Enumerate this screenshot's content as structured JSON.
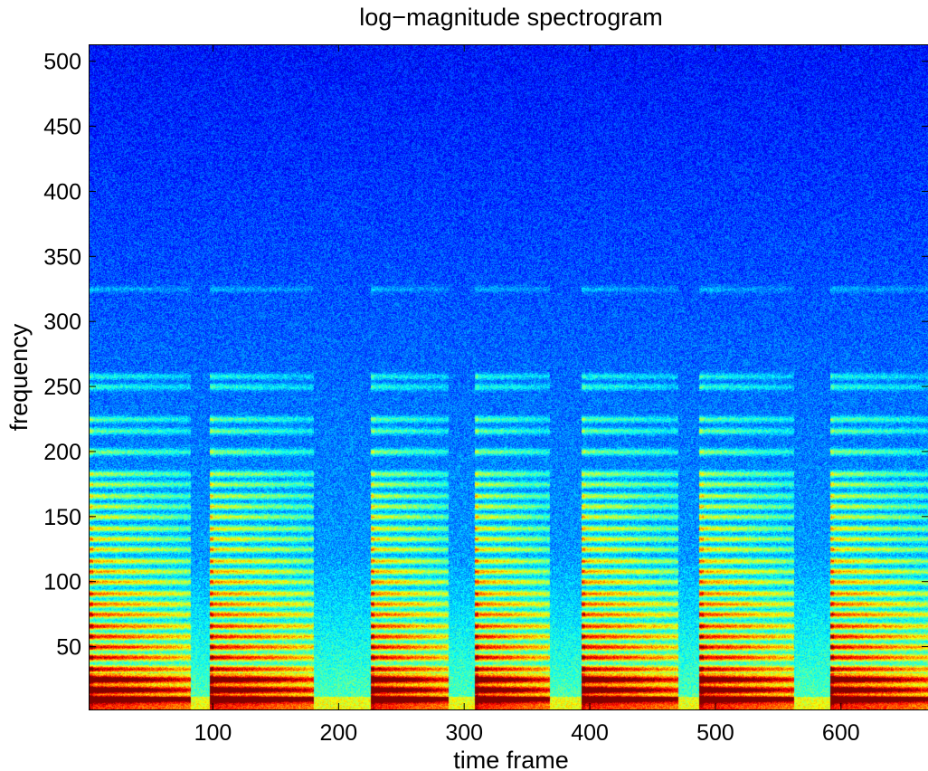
{
  "chart_data": {
    "type": "heatmap",
    "title": "log−magnitude spectrogram",
    "xlabel": "time frame",
    "ylabel": "frequency",
    "xlim": [
      1,
      670
    ],
    "ylim": [
      1,
      513
    ],
    "x_ticks": [
      100,
      200,
      300,
      400,
      500,
      600
    ],
    "y_ticks": [
      50,
      100,
      150,
      200,
      250,
      300,
      350,
      400,
      450,
      500
    ],
    "colormap": "jet",
    "grid": false,
    "note_onsets": [
      {
        "start": 1,
        "end": 82
      },
      {
        "start": 97,
        "end": 180
      },
      {
        "start": 225,
        "end": 287
      },
      {
        "start": 308,
        "end": 368
      },
      {
        "start": 393,
        "end": 470
      },
      {
        "start": 487,
        "end": 562
      },
      {
        "start": 591,
        "end": 670
      }
    ],
    "harmonic_bands_frequency": [
      10,
      17,
      25,
      33,
      42,
      50,
      58,
      66,
      75,
      83,
      91,
      100,
      108,
      116,
      125,
      133,
      141,
      150,
      158,
      166,
      175,
      183,
      200,
      216,
      225,
      250,
      258,
      325
    ]
  }
}
